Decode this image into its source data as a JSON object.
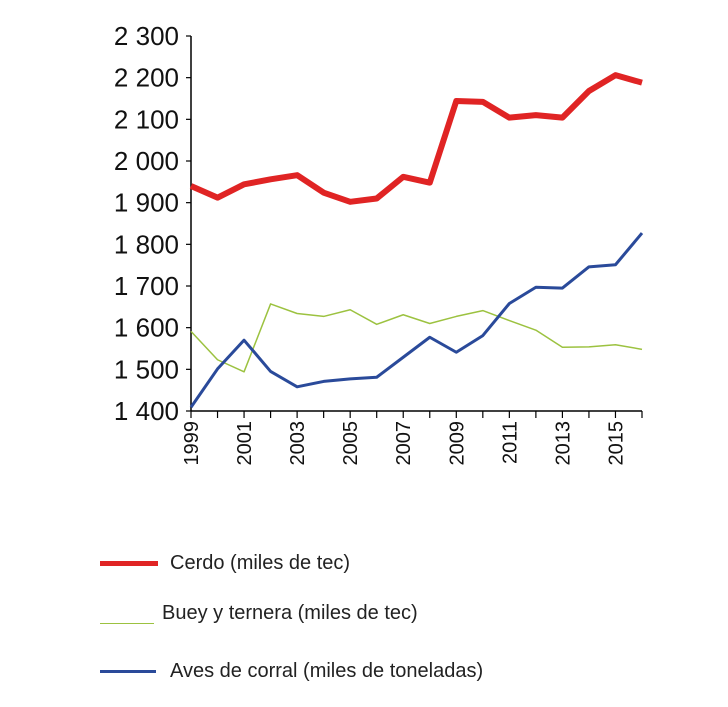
{
  "chart_data": {
    "type": "line",
    "title": "",
    "xlabel": "",
    "ylabel": "",
    "ylim": [
      1400,
      2300
    ],
    "yticks": [
      1400,
      1500,
      1600,
      1700,
      1800,
      1900,
      2000,
      2100,
      2200,
      2300
    ],
    "ytick_labels": [
      "1 400",
      "1 500",
      "1 600",
      "1 700",
      "1 800",
      "1 900",
      "2 000",
      "2 100",
      "2 200",
      "2 300"
    ],
    "x": [
      1999,
      2000,
      2001,
      2002,
      2003,
      2004,
      2005,
      2006,
      2007,
      2008,
      2009,
      2010,
      2011,
      2012,
      2013,
      2014,
      2015,
      2016
    ],
    "xtick_labels": [
      "1999",
      "2001",
      "2003",
      "2005",
      "2007",
      "2009",
      "2011",
      "2013",
      "2015"
    ],
    "grid": false,
    "legend": "bottom",
    "series": [
      {
        "name": "Cerdo (miles de tec)",
        "color": "#e02424",
        "values": [
          1940,
          1912,
          1944,
          1956,
          1966,
          1924,
          1902,
          1910,
          1962,
          1948,
          2144,
          2142,
          2104,
          2110,
          2104,
          2168,
          2206,
          2188
        ]
      },
      {
        "name": "Buey y ternera (miles de tec)",
        "color": "#9cc240",
        "values": [
          1591,
          1523,
          1494,
          1657,
          1634,
          1627,
          1643,
          1608,
          1631,
          1610,
          1627,
          1641,
          1617,
          1594,
          1553,
          1554,
          1559,
          1548
        ]
      },
      {
        "name": "Aves de corral (miles de toneladas)",
        "color": "#2a4a9a",
        "values": [
          1409,
          1501,
          1570,
          1495,
          1458,
          1471,
          1477,
          1481,
          1529,
          1577,
          1541,
          1581,
          1658,
          1697,
          1695,
          1746,
          1751,
          1827
        ]
      }
    ]
  }
}
